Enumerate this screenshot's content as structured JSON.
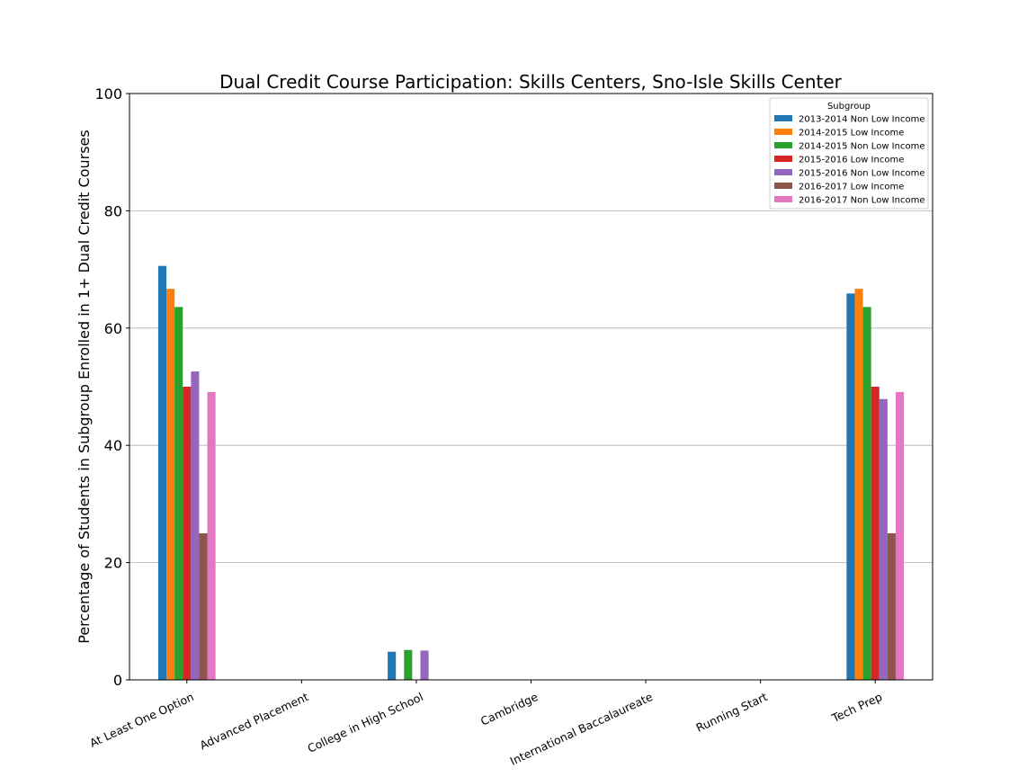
{
  "chart_data": {
    "type": "bar",
    "title": "Dual Credit Course Participation: Skills Centers, Sno-Isle Skills Center",
    "xlabel": "",
    "ylabel": "Percentage of Students in Subgroup Enrolled in 1+ Dual Credit Courses",
    "ylim": [
      0,
      100
    ],
    "yticks": [
      0,
      20,
      40,
      60,
      80,
      100
    ],
    "grid": "horizontal",
    "legend": {
      "title": "Subgroup",
      "placement": "top-right"
    },
    "categories": [
      "At Least One Option",
      "Advanced Placement",
      "College in High School",
      "Cambridge",
      "International Baccalaureate",
      "Running Start",
      "Tech Prep"
    ],
    "series": [
      {
        "name": "2013-2014 Non Low Income",
        "color": "#1f77b4",
        "values": [
          70.6,
          0,
          4.8,
          0,
          0,
          0,
          65.9
        ]
      },
      {
        "name": "2014-2015 Low Income",
        "color": "#ff7f0e",
        "values": [
          66.7,
          0,
          0,
          0,
          0,
          0,
          66.7
        ]
      },
      {
        "name": "2014-2015 Non Low Income",
        "color": "#2ca02c",
        "values": [
          63.6,
          0,
          5.1,
          0,
          0,
          0,
          63.6
        ]
      },
      {
        "name": "2015-2016 Low Income",
        "color": "#d62728",
        "values": [
          50.0,
          0,
          0,
          0,
          0,
          0,
          50.0
        ]
      },
      {
        "name": "2015-2016 Non Low Income",
        "color": "#9467bd",
        "values": [
          52.6,
          0,
          5.0,
          0,
          0,
          0,
          47.9
        ]
      },
      {
        "name": "2016-2017 Low Income",
        "color": "#8c564b",
        "values": [
          25.0,
          0,
          0,
          0,
          0,
          0,
          25.0
        ]
      },
      {
        "name": "2016-2017 Non Low Income",
        "color": "#e377c2",
        "values": [
          49.1,
          0,
          0,
          0,
          0,
          0,
          49.1
        ]
      }
    ]
  }
}
